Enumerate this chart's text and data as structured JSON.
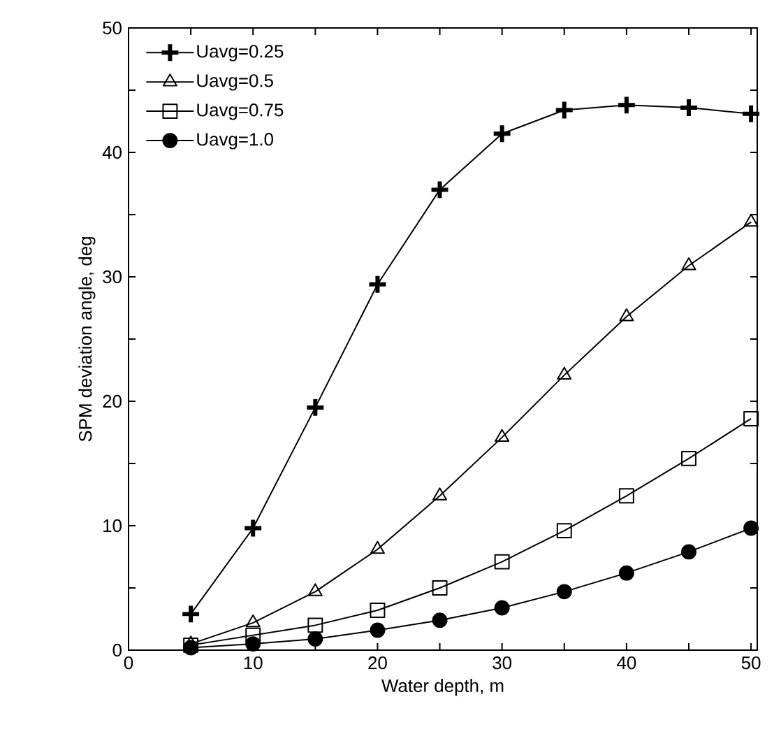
{
  "chart_data": {
    "type": "line",
    "xlabel": "Water depth, m",
    "ylabel": "SPM deviation angle, deg",
    "x": [
      5,
      10,
      15,
      20,
      25,
      30,
      35,
      40,
      45,
      50
    ],
    "series": [
      {
        "name": "Uavg=0.25",
        "color": "#000000",
        "marker": "cross",
        "values": [
          2.9,
          9.8,
          19.5,
          29.4,
          37.0,
          41.5,
          43.4,
          43.8,
          43.6,
          43.1
        ]
      },
      {
        "name": "Uavg=0.5",
        "color": "#000000",
        "marker": "triangle",
        "values": [
          0.5,
          2.2,
          4.7,
          8.1,
          12.4,
          17.1,
          22.1,
          26.8,
          30.9,
          34.4
        ]
      },
      {
        "name": "Uavg=0.75",
        "color": "#000000",
        "marker": "square",
        "values": [
          0.4,
          1.2,
          2.0,
          3.2,
          5.0,
          7.1,
          9.6,
          12.4,
          15.4,
          18.6
        ]
      },
      {
        "name": "Uavg=1.0",
        "color": "#000000",
        "marker": "circle",
        "values": [
          0.2,
          0.5,
          0.9,
          1.6,
          2.4,
          3.4,
          4.7,
          6.2,
          7.9,
          9.8
        ]
      }
    ],
    "xlim": [
      0,
      50.5
    ],
    "ylim": [
      0,
      50
    ],
    "xticks": [
      0,
      {
        "value": 5,
        "label": null
      },
      10,
      {
        "value": 15,
        "label": null
      },
      20,
      {
        "value": 25,
        "label": null
      },
      30,
      {
        "value": 35,
        "label": null
      },
      40,
      {
        "value": 45,
        "label": null
      },
      50
    ],
    "yticks": [
      0,
      {
        "value": 5,
        "label": null
      },
      10,
      {
        "value": 15,
        "label": null
      },
      20,
      {
        "value": 25,
        "label": null
      },
      30,
      {
        "value": 35,
        "label": null
      },
      40,
      {
        "value": 45,
        "label": null
      },
      50
    ],
    "legend": "top left",
    "grid": false,
    "line_style": "solid"
  }
}
